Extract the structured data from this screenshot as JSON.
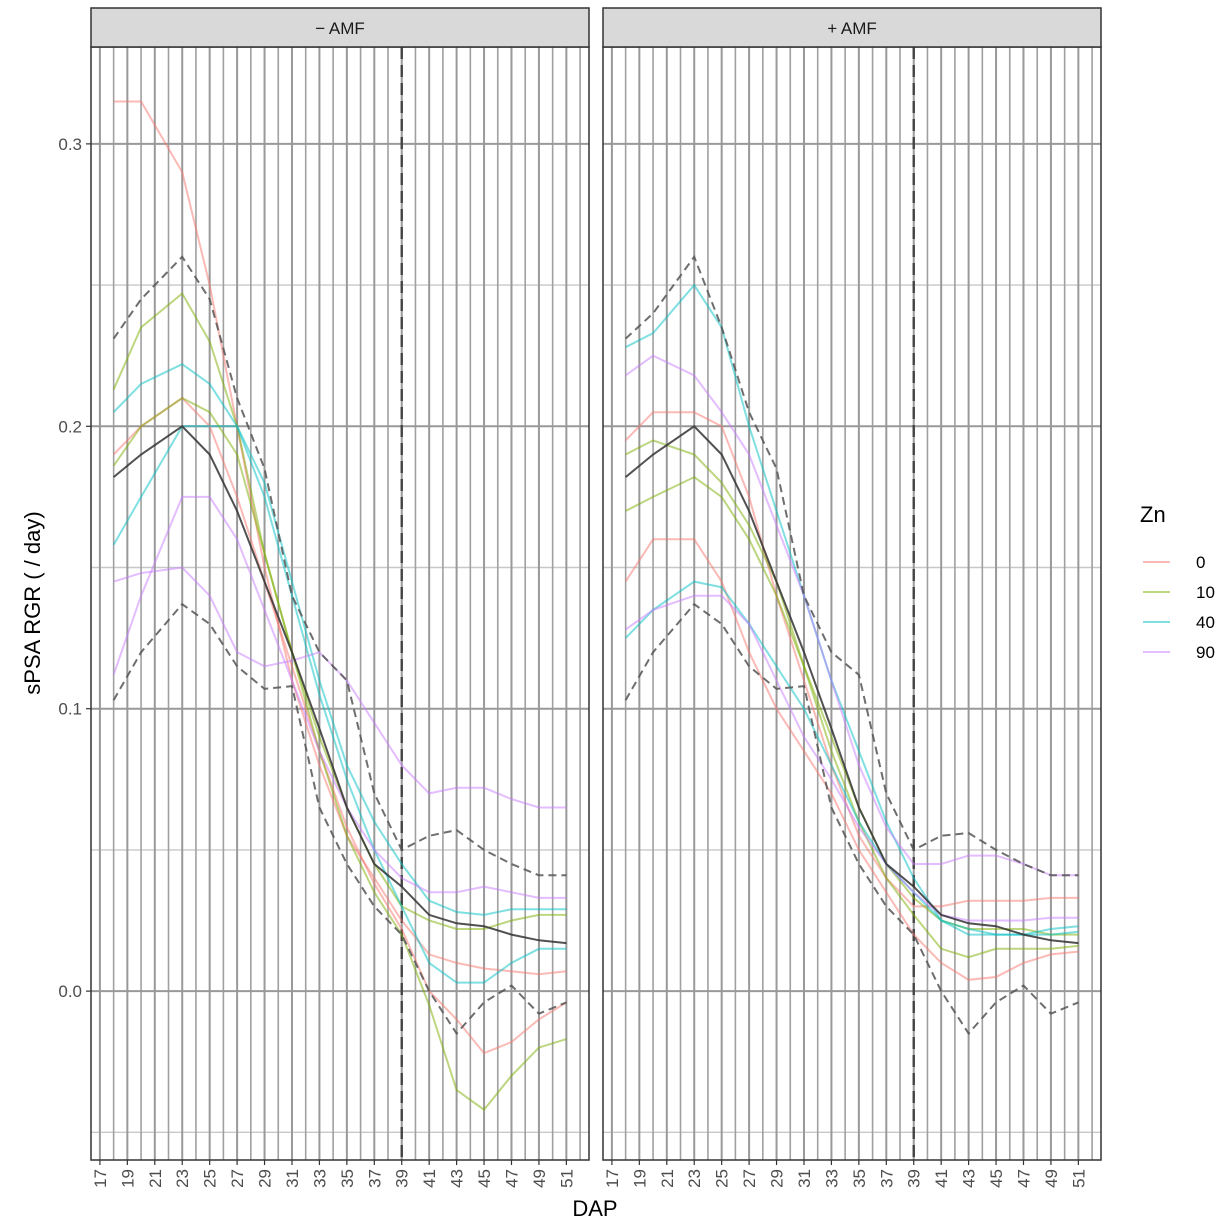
{
  "x_label": "DAP",
  "y_label": "sPSA RGR ( / day)",
  "legend_title": "Zn",
  "chart_data": [
    {
      "type": "line",
      "title": "− AMF",
      "x": [
        18,
        20,
        23,
        25,
        27,
        29,
        31,
        33,
        35,
        37,
        39,
        41,
        43,
        45,
        47,
        49,
        51
      ],
      "xlim": [
        16.35,
        52.65
      ],
      "xticks": [
        17,
        19,
        21,
        23,
        25,
        27,
        29,
        31,
        33,
        35,
        37,
        39,
        41,
        43,
        45,
        47,
        49,
        51
      ],
      "xminor": [
        18,
        20,
        22,
        24,
        26,
        28,
        30,
        32,
        34,
        36,
        38,
        40,
        42,
        44,
        46,
        48,
        50,
        52
      ],
      "ylim": [
        -0.0598,
        0.3343
      ],
      "yticks": [
        {
          "value": 0,
          "label": "0.0"
        },
        0.1,
        0.2,
        0.3
      ],
      "yminor": [
        -0.05,
        0.05,
        0.15,
        0.25
      ],
      "vline": 39,
      "series": [
        {
          "name": "0",
          "color": "#F8766D",
          "values": [
            0.315,
            0.315,
            0.29,
            0.25,
            0.2,
            0.15,
            0.11,
            0.08,
            0.055,
            0.04,
            0.025,
            0.013,
            0.01,
            0.008,
            0.007,
            0.006,
            0.007
          ]
        },
        {
          "name": "0",
          "color": "#F8766D",
          "values": [
            0.19,
            0.2,
            0.21,
            0.2,
            0.175,
            0.145,
            0.115,
            0.085,
            0.058,
            0.038,
            0.022,
            0.0,
            -0.01,
            -0.022,
            -0.018,
            -0.01,
            -0.004
          ]
        },
        {
          "name": "10",
          "color": "#7CAE00",
          "values": [
            0.213,
            0.235,
            0.247,
            0.23,
            0.2,
            0.155,
            0.12,
            0.085,
            0.055,
            0.035,
            0.02,
            -0.005,
            -0.035,
            -0.042,
            -0.03,
            -0.02,
            -0.017
          ]
        },
        {
          "name": "10",
          "color": "#7CAE00",
          "values": [
            0.186,
            0.2,
            0.21,
            0.205,
            0.19,
            0.155,
            0.12,
            0.09,
            0.065,
            0.045,
            0.03,
            0.025,
            0.022,
            0.022,
            0.025,
            0.027,
            0.027
          ]
        },
        {
          "name": "40",
          "color": "#00BFC4",
          "values": [
            0.158,
            0.175,
            0.2,
            0.2,
            0.2,
            0.18,
            0.145,
            0.11,
            0.08,
            0.06,
            0.045,
            0.032,
            0.028,
            0.027,
            0.029,
            0.029,
            0.029
          ]
        },
        {
          "name": "40",
          "color": "#00BFC4",
          "values": [
            0.205,
            0.215,
            0.222,
            0.215,
            0.2,
            0.175,
            0.14,
            0.105,
            0.075,
            0.05,
            0.03,
            0.01,
            0.003,
            0.003,
            0.01,
            0.015,
            0.015
          ]
        },
        {
          "name": "90",
          "color": "#C77CFF",
          "values": [
            0.145,
            0.148,
            0.15,
            0.14,
            0.12,
            0.115,
            0.117,
            0.12,
            0.11,
            0.095,
            0.08,
            0.07,
            0.072,
            0.072,
            0.068,
            0.065,
            0.065
          ]
        },
        {
          "name": "90",
          "color": "#C77CFF",
          "values": [
            0.112,
            0.14,
            0.175,
            0.175,
            0.16,
            0.135,
            0.11,
            0.085,
            0.065,
            0.05,
            0.04,
            0.035,
            0.035,
            0.037,
            0.035,
            0.033,
            0.033
          ]
        },
        {
          "color": "#333333",
          "values": [
            0.182,
            0.19,
            0.2,
            0.19,
            0.17,
            0.145,
            0.12,
            0.093,
            0.065,
            0.045,
            0.037,
            0.027,
            0.024,
            0.023,
            0.02,
            0.018,
            0.017
          ]
        },
        {
          "color": "#555555",
          "dashed": true,
          "values": [
            0.231,
            0.245,
            0.26,
            0.245,
            0.21,
            0.185,
            0.14,
            0.12,
            0.11,
            0.07,
            0.05,
            0.055,
            0.057,
            0.05,
            0.045,
            0.041,
            0.041
          ]
        },
        {
          "color": "#555555",
          "dashed": true,
          "values": [
            0.103,
            0.12,
            0.137,
            0.13,
            0.115,
            0.107,
            0.108,
            0.065,
            0.045,
            0.03,
            0.02,
            0.0,
            -0.015,
            -0.004,
            0.002,
            -0.008,
            -0.004
          ]
        }
      ]
    },
    {
      "type": "line",
      "title": "+ AMF",
      "x": [
        18,
        20,
        23,
        25,
        27,
        29,
        31,
        33,
        35,
        37,
        39,
        41,
        43,
        45,
        47,
        49,
        51
      ],
      "xlim": [
        16.35,
        52.65
      ],
      "xticks": [
        17,
        19,
        21,
        23,
        25,
        27,
        29,
        31,
        33,
        35,
        37,
        39,
        41,
        43,
        45,
        47,
        49,
        51
      ],
      "xminor": [
        18,
        20,
        22,
        24,
        26,
        28,
        30,
        32,
        34,
        36,
        38,
        40,
        42,
        44,
        46,
        48,
        50,
        52
      ],
      "ylim": [
        -0.0598,
        0.3343
      ],
      "yticks": [
        {
          "value": 0,
          "label": "0.0"
        },
        0.1,
        0.2,
        0.3
      ],
      "yminor": [
        -0.05,
        0.05,
        0.15,
        0.25
      ],
      "vline": 39,
      "series": [
        {
          "name": "0",
          "color": "#F8766D",
          "values": [
            0.195,
            0.205,
            0.205,
            0.2,
            0.175,
            0.14,
            0.11,
            0.08,
            0.055,
            0.04,
            0.03,
            0.03,
            0.032,
            0.032,
            0.032,
            0.033,
            0.033
          ]
        },
        {
          "name": "0",
          "color": "#F8766D",
          "values": [
            0.145,
            0.16,
            0.16,
            0.145,
            0.12,
            0.1,
            0.085,
            0.07,
            0.05,
            0.035,
            0.02,
            0.01,
            0.004,
            0.005,
            0.01,
            0.013,
            0.014
          ]
        },
        {
          "name": "10",
          "color": "#7CAE00",
          "values": [
            0.19,
            0.195,
            0.19,
            0.18,
            0.165,
            0.145,
            0.115,
            0.085,
            0.06,
            0.04,
            0.027,
            0.015,
            0.012,
            0.015,
            0.015,
            0.015,
            0.016
          ]
        },
        {
          "name": "10",
          "color": "#7CAE00",
          "values": [
            0.17,
            0.175,
            0.182,
            0.175,
            0.16,
            0.14,
            0.115,
            0.09,
            0.065,
            0.045,
            0.033,
            0.025,
            0.022,
            0.022,
            0.022,
            0.02,
            0.02
          ]
        },
        {
          "name": "40",
          "color": "#00BFC4",
          "values": [
            0.228,
            0.233,
            0.25,
            0.235,
            0.2,
            0.17,
            0.14,
            0.11,
            0.085,
            0.06,
            0.04,
            0.025,
            0.02,
            0.02,
            0.02,
            0.022,
            0.023
          ]
        },
        {
          "name": "40",
          "color": "#00BFC4",
          "values": [
            0.125,
            0.135,
            0.145,
            0.143,
            0.13,
            0.115,
            0.1,
            0.08,
            0.06,
            0.045,
            0.035,
            0.025,
            0.022,
            0.02,
            0.02,
            0.02,
            0.021
          ]
        },
        {
          "name": "90",
          "color": "#C77CFF",
          "values": [
            0.218,
            0.225,
            0.218,
            0.205,
            0.19,
            0.165,
            0.14,
            0.11,
            0.08,
            0.058,
            0.045,
            0.045,
            0.048,
            0.048,
            0.045,
            0.041,
            0.041
          ]
        },
        {
          "name": "90",
          "color": "#C77CFF",
          "values": [
            0.128,
            0.135,
            0.14,
            0.14,
            0.13,
            0.11,
            0.09,
            0.075,
            0.058,
            0.045,
            0.035,
            0.027,
            0.025,
            0.025,
            0.025,
            0.026,
            0.026
          ]
        },
        {
          "color": "#333333",
          "values": [
            0.182,
            0.19,
            0.2,
            0.19,
            0.17,
            0.145,
            0.12,
            0.093,
            0.065,
            0.045,
            0.037,
            0.027,
            0.024,
            0.023,
            0.02,
            0.018,
            0.017
          ]
        },
        {
          "color": "#555555",
          "dashed": true,
          "values": [
            0.231,
            0.24,
            0.26,
            0.235,
            0.205,
            0.185,
            0.14,
            0.12,
            0.112,
            0.07,
            0.05,
            0.055,
            0.056,
            0.05,
            0.045,
            0.041,
            0.041
          ]
        },
        {
          "color": "#555555",
          "dashed": true,
          "values": [
            0.103,
            0.12,
            0.137,
            0.13,
            0.115,
            0.107,
            0.108,
            0.065,
            0.045,
            0.03,
            0.02,
            0.0,
            -0.015,
            -0.004,
            0.002,
            -0.008,
            -0.004
          ]
        }
      ]
    }
  ]
}
